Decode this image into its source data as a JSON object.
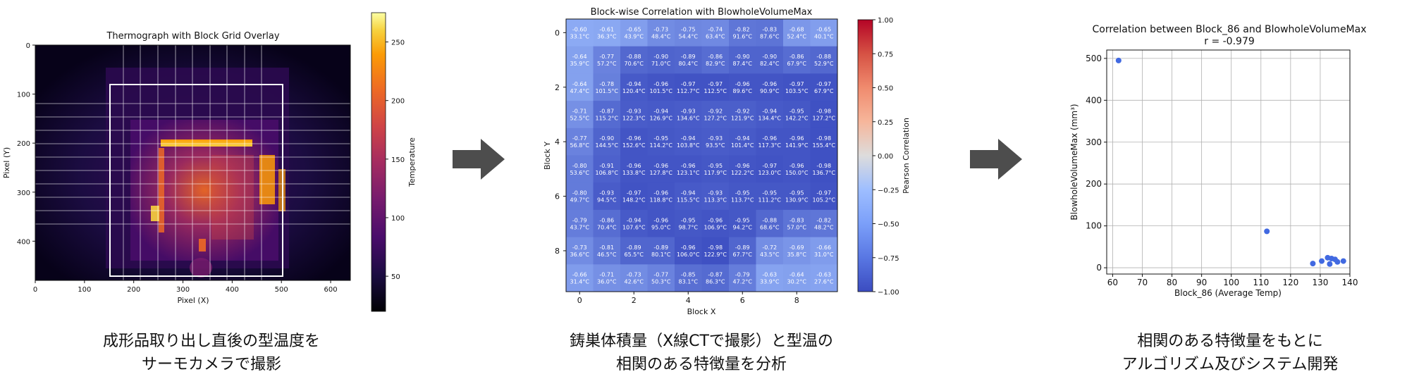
{
  "panel1": {
    "title": "Thermograph with Block Grid Overlay",
    "xlabel": "Pixel (X)",
    "ylabel": "Pixel (Y)",
    "x_ticks": [
      "0",
      "100",
      "200",
      "300",
      "400",
      "500",
      "600"
    ],
    "y_ticks": [
      "0",
      "100",
      "200",
      "300",
      "400"
    ],
    "colorbar_label": "Temperature",
    "colorbar_ticks": [
      "250",
      "200",
      "150",
      "100",
      "50"
    ],
    "caption": [
      "成形品取り出し直後の型温度を",
      "サーモカメラで撮影"
    ]
  },
  "panel2": {
    "title": "Block-wise Correlation with BlowholeVolumeMax",
    "xlabel": "Block X",
    "ylabel": "Block Y",
    "x_ticks": [
      "0",
      "2",
      "4",
      "6",
      "8"
    ],
    "y_ticks": [
      "0",
      "2",
      "4",
      "6",
      "8"
    ],
    "colorbar_label": "Pearson Correlation",
    "colorbar_ticks": [
      "1.00",
      "0.75",
      "0.50",
      "0.25",
      "0.00",
      "−0.25",
      "−0.50",
      "−0.75",
      "−1.00"
    ],
    "caption": [
      "鋳巣体積量（X線CTで撮影）と型温の",
      "相関のある特徴量を分析"
    ]
  },
  "panel3": {
    "title": "Correlation between Block_86 and BlowholeVolumeMax",
    "subtitle": "r = -0.979",
    "xlabel": "Block_86 (Average Temp)",
    "ylabel": "BlowholeVolumeMax (mm³)",
    "caption": [
      "相関のある特徴量をもとに",
      "アルゴリズム及びシステム開発"
    ]
  },
  "chart_data": [
    {
      "type": "heatmap",
      "title": "Block-wise Correlation with BlowholeVolumeMax",
      "xlabel": "Block X",
      "ylabel": "Block Y",
      "colorbar": {
        "label": "Pearson Correlation",
        "range": [
          -1.0,
          1.0
        ],
        "colormap": "coolwarm"
      },
      "cells": [
        [
          {
            "r": "-0.60",
            "t": "33.1°C"
          },
          {
            "r": "-0.61",
            "t": "36.3°C"
          },
          {
            "r": "-0.65",
            "t": "43.9°C"
          },
          {
            "r": "-0.73",
            "t": "48.4°C"
          },
          {
            "r": "-0.75",
            "t": "54.4°C"
          },
          {
            "r": "-0.74",
            "t": "63.4°C"
          },
          {
            "r": "-0.82",
            "t": "91.6°C"
          },
          {
            "r": "-0.83",
            "t": "87.6°C"
          },
          {
            "r": "-0.68",
            "t": "52.4°C"
          },
          {
            "r": "-0.65",
            "t": "40.1°C"
          }
        ],
        [
          {
            "r": "-0.64",
            "t": "35.9°C"
          },
          {
            "r": "-0.77",
            "t": "57.2°C"
          },
          {
            "r": "-0.88",
            "t": "70.6°C"
          },
          {
            "r": "-0.90",
            "t": "71.0°C"
          },
          {
            "r": "-0.89",
            "t": "80.4°C"
          },
          {
            "r": "-0.86",
            "t": "82.9°C"
          },
          {
            "r": "-0.90",
            "t": "87.4°C"
          },
          {
            "r": "-0.90",
            "t": "82.4°C"
          },
          {
            "r": "-0.86",
            "t": "67.9°C"
          },
          {
            "r": "-0.88",
            "t": "52.9°C"
          }
        ],
        [
          {
            "r": "-0.64",
            "t": "47.4°C"
          },
          {
            "r": "-0.78",
            "t": "101.5°C"
          },
          {
            "r": "-0.94",
            "t": "120.4°C"
          },
          {
            "r": "-0.96",
            "t": "101.5°C"
          },
          {
            "r": "-0.97",
            "t": "112.7°C"
          },
          {
            "r": "-0.97",
            "t": "112.5°C"
          },
          {
            "r": "-0.96",
            "t": "89.6°C"
          },
          {
            "r": "-0.96",
            "t": "90.9°C"
          },
          {
            "r": "-0.97",
            "t": "103.5°C"
          },
          {
            "r": "-0.97",
            "t": "67.9°C"
          }
        ],
        [
          {
            "r": "-0.71",
            "t": "52.5°C"
          },
          {
            "r": "-0.87",
            "t": "115.2°C"
          },
          {
            "r": "-0.93",
            "t": "122.3°C"
          },
          {
            "r": "-0.94",
            "t": "126.9°C"
          },
          {
            "r": "-0.93",
            "t": "134.6°C"
          },
          {
            "r": "-0.92",
            "t": "127.2°C"
          },
          {
            "r": "-0.92",
            "t": "121.9°C"
          },
          {
            "r": "-0.94",
            "t": "134.4°C"
          },
          {
            "r": "-0.95",
            "t": "142.2°C"
          },
          {
            "r": "-0.98",
            "t": "127.2°C"
          }
        ],
        [
          {
            "r": "-0.77",
            "t": "56.8°C"
          },
          {
            "r": "-0.90",
            "t": "144.5°C"
          },
          {
            "r": "-0.96",
            "t": "152.6°C"
          },
          {
            "r": "-0.95",
            "t": "114.2°C"
          },
          {
            "r": "-0.94",
            "t": "103.8°C"
          },
          {
            "r": "-0.93",
            "t": "93.5°C"
          },
          {
            "r": "-0.94",
            "t": "101.4°C"
          },
          {
            "r": "-0.96",
            "t": "117.3°C"
          },
          {
            "r": "-0.96",
            "t": "141.9°C"
          },
          {
            "r": "-0.98",
            "t": "155.4°C"
          }
        ],
        [
          {
            "r": "-0.80",
            "t": "53.6°C"
          },
          {
            "r": "-0.91",
            "t": "106.8°C"
          },
          {
            "r": "-0.96",
            "t": "133.8°C"
          },
          {
            "r": "-0.96",
            "t": "127.8°C"
          },
          {
            "r": "-0.96",
            "t": "123.1°C"
          },
          {
            "r": "-0.95",
            "t": "117.9°C"
          },
          {
            "r": "-0.96",
            "t": "122.2°C"
          },
          {
            "r": "-0.97",
            "t": "123.0°C"
          },
          {
            "r": "-0.96",
            "t": "150.0°C"
          },
          {
            "r": "-0.98",
            "t": "136.7°C"
          }
        ],
        [
          {
            "r": "-0.80",
            "t": "49.7°C"
          },
          {
            "r": "-0.93",
            "t": "94.5°C"
          },
          {
            "r": "-0.97",
            "t": "148.2°C"
          },
          {
            "r": "-0.96",
            "t": "118.8°C"
          },
          {
            "r": "-0.94",
            "t": "115.5°C"
          },
          {
            "r": "-0.93",
            "t": "113.3°C"
          },
          {
            "r": "-0.95",
            "t": "113.7°C"
          },
          {
            "r": "-0.95",
            "t": "111.2°C"
          },
          {
            "r": "-0.95",
            "t": "130.9°C"
          },
          {
            "r": "-0.97",
            "t": "105.2°C"
          }
        ],
        [
          {
            "r": "-0.79",
            "t": "43.7°C"
          },
          {
            "r": "-0.86",
            "t": "70.4°C"
          },
          {
            "r": "-0.94",
            "t": "107.6°C"
          },
          {
            "r": "-0.96",
            "t": "95.0°C"
          },
          {
            "r": "-0.95",
            "t": "98.7°C"
          },
          {
            "r": "-0.96",
            "t": "106.9°C"
          },
          {
            "r": "-0.95",
            "t": "94.2°C"
          },
          {
            "r": "-0.88",
            "t": "68.6°C"
          },
          {
            "r": "-0.83",
            "t": "57.0°C"
          },
          {
            "r": "-0.82",
            "t": "48.2°C"
          }
        ],
        [
          {
            "r": "-0.73",
            "t": "36.6°C"
          },
          {
            "r": "-0.81",
            "t": "46.5°C"
          },
          {
            "r": "-0.89",
            "t": "65.5°C"
          },
          {
            "r": "-0.89",
            "t": "80.1°C"
          },
          {
            "r": "-0.96",
            "t": "106.0°C"
          },
          {
            "r": "-0.98",
            "t": "122.9°C"
          },
          {
            "r": "-0.89",
            "t": "67.7°C"
          },
          {
            "r": "-0.72",
            "t": "43.5°C"
          },
          {
            "r": "-0.69",
            "t": "35.8°C"
          },
          {
            "r": "-0.66",
            "t": "31.0°C"
          }
        ],
        [
          {
            "r": "-0.66",
            "t": "31.4°C"
          },
          {
            "r": "-0.71",
            "t": "36.0°C"
          },
          {
            "r": "-0.73",
            "t": "42.6°C"
          },
          {
            "r": "-0.77",
            "t": "50.3°C"
          },
          {
            "r": "-0.85",
            "t": "83.1°C"
          },
          {
            "r": "-0.87",
            "t": "86.3°C"
          },
          {
            "r": "-0.79",
            "t": "47.2°C"
          },
          {
            "r": "-0.63",
            "t": "33.9°C"
          },
          {
            "r": "-0.64",
            "t": "30.2°C"
          },
          {
            "r": "-0.63",
            "t": "27.6°C"
          }
        ]
      ]
    },
    {
      "type": "scatter",
      "title": "Correlation between Block_86 and BlowholeVolumeMax",
      "subtitle": "r = -0.979",
      "xlabel": "Block_86 (Average Temp)",
      "ylabel": "BlowholeVolumeMax (mm³)",
      "xlim": [
        58,
        140
      ],
      "ylim": [
        -15,
        520
      ],
      "x_ticks": [
        60,
        70,
        80,
        90,
        100,
        110,
        120,
        130,
        140
      ],
      "y_ticks": [
        0,
        100,
        200,
        300,
        400,
        500
      ],
      "grid": true,
      "color": "#4169e1",
      "points": [
        {
          "x": 62,
          "y": 495
        },
        {
          "x": 112,
          "y": 87
        },
        {
          "x": 127.5,
          "y": 10
        },
        {
          "x": 130.5,
          "y": 16
        },
        {
          "x": 132.5,
          "y": 24
        },
        {
          "x": 133.2,
          "y": 9
        },
        {
          "x": 133.8,
          "y": 22
        },
        {
          "x": 135,
          "y": 20
        },
        {
          "x": 135.8,
          "y": 14
        },
        {
          "x": 137.8,
          "y": 16
        }
      ]
    }
  ]
}
